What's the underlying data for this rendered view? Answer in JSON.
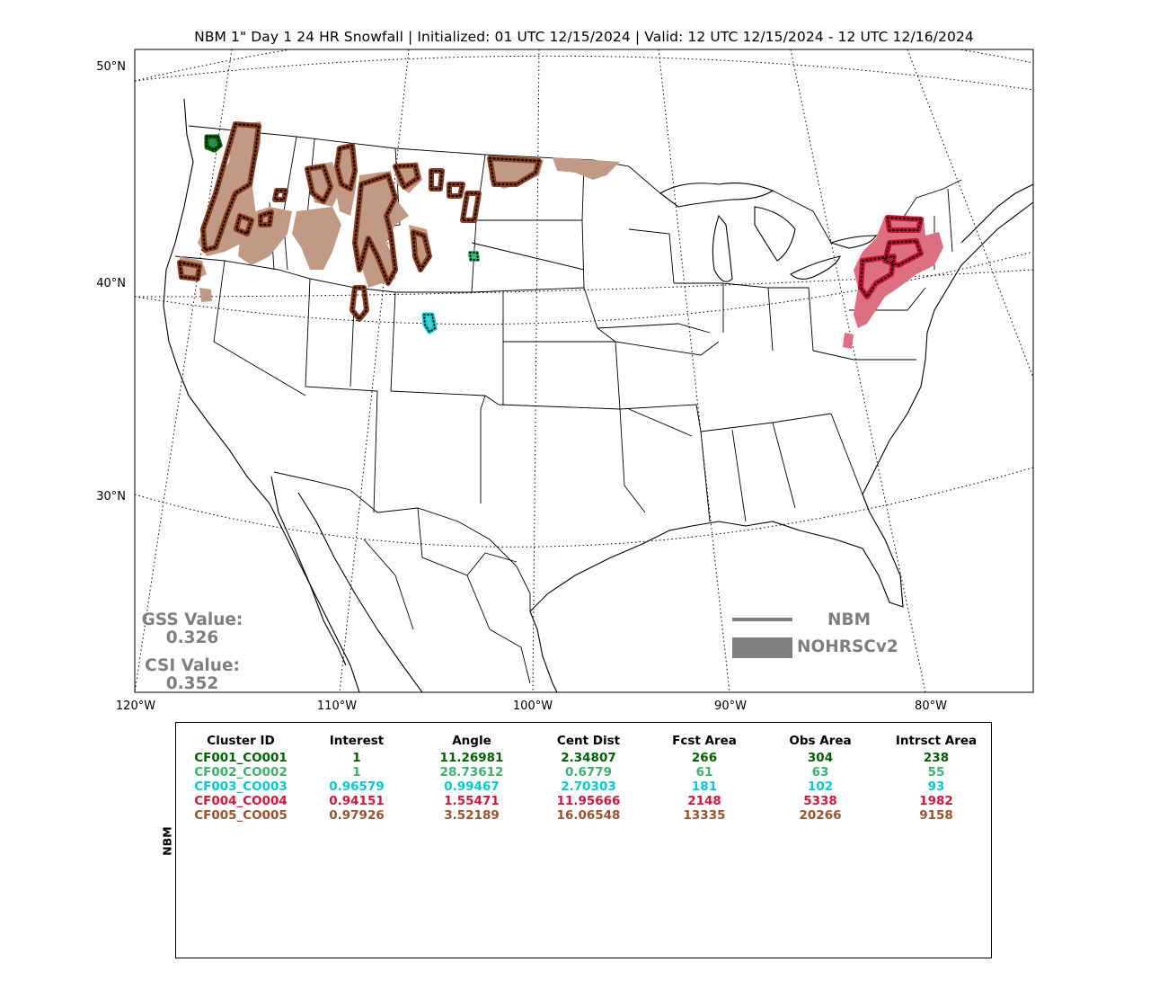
{
  "title": "NBM 1\" Day 1 24 HR Snowfall | Initialized: 01 UTC 12/15/2024 | Valid: 12 UTC 12/15/2024 - 12 UTC 12/16/2024",
  "map": {
    "lat_labels": [
      "50°N",
      "40°N",
      "30°N"
    ],
    "lon_labels": [
      "120°W",
      "110°W",
      "100°W",
      "90°W",
      "80°W"
    ],
    "regions": [
      {
        "name": "CF001_CO001",
        "color": "#006400",
        "area": "Puget Sound, WA"
      },
      {
        "name": "CF002_CO002",
        "color": "#3cb371",
        "area": "Western Nebraska"
      },
      {
        "name": "CF003_CO003",
        "color": "#00ced1",
        "area": "Northern Colorado"
      },
      {
        "name": "CF004_CO004",
        "color": "#dc143c",
        "area": "Great Lakes / Appalachians"
      },
      {
        "name": "CF005_CO005",
        "color": "#a0522d",
        "area": "Northern Rockies / Northern Plains"
      }
    ]
  },
  "stats": {
    "gss_label": "GSS Value:",
    "gss_value": "0.326",
    "csi_label": "CSI Value:",
    "csi_value": "0.352"
  },
  "legend": {
    "forecast_label": "NBM",
    "observed_label": "NOHRSCv2",
    "color": "#7f7f7f"
  },
  "table": {
    "side_label": "NBM",
    "columns": [
      "Cluster ID",
      "Interest",
      "Angle",
      "Cent Dist",
      "Fcst Area",
      "Obs Area",
      "Intrsct Area"
    ],
    "rows": [
      {
        "color": "#006400",
        "cells": [
          "CF001_CO001",
          "1",
          "11.26981",
          "2.34807",
          "266",
          "304",
          "238"
        ]
      },
      {
        "color": "#3cb371",
        "cells": [
          "CF002_CO002",
          "1",
          "28.73612",
          "0.6779",
          "61",
          "63",
          "55"
        ]
      },
      {
        "color": "#00ced1",
        "cells": [
          "CF003_CO003",
          "0.96579",
          "0.99467",
          "2.70303",
          "181",
          "102",
          "93"
        ]
      },
      {
        "color": "#dc143c",
        "cells": [
          "CF004_CO004",
          "0.94151",
          "1.55471",
          "11.95666",
          "2148",
          "5338",
          "1982"
        ]
      },
      {
        "color": "#a0522d",
        "cells": [
          "CF005_CO005",
          "0.97926",
          "3.52189",
          "16.06548",
          "13335",
          "20266",
          "9158"
        ]
      }
    ]
  }
}
